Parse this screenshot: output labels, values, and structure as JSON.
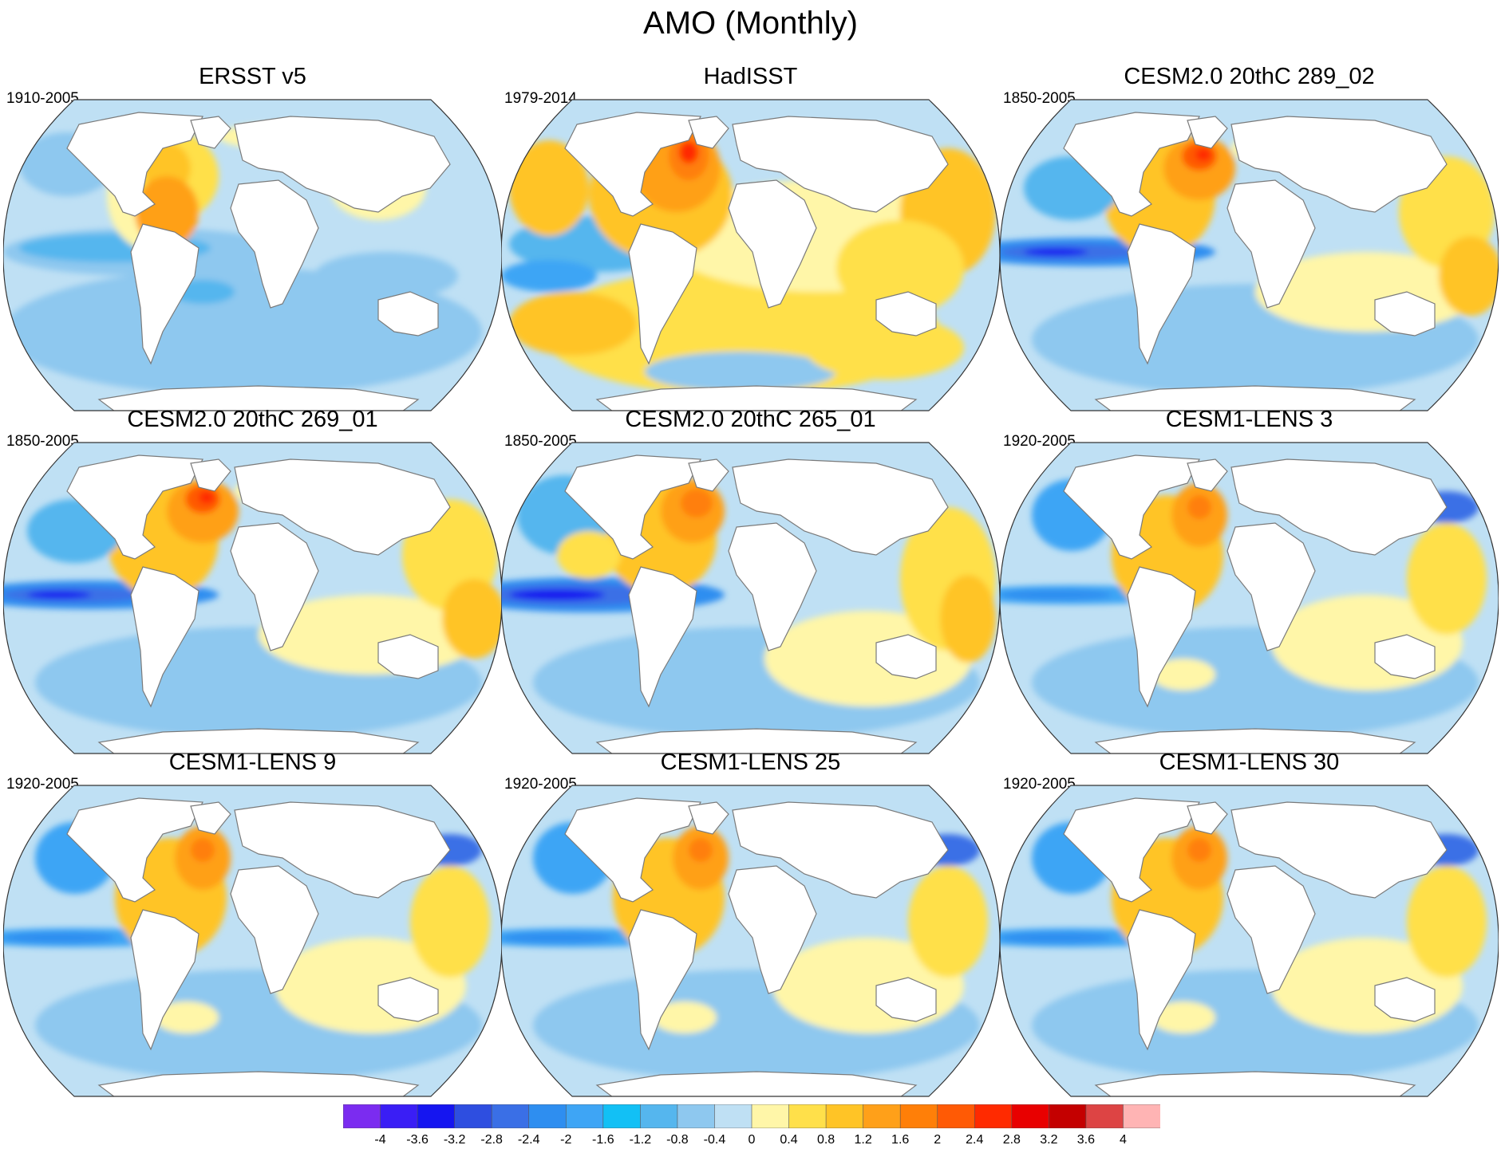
{
  "figure": {
    "title": "AMO (Monthly)",
    "projection": "Robinson (world)",
    "colors": {
      "land": "#ffffff",
      "coastline": "#7a7a7a",
      "border": "#333333"
    }
  },
  "panels": [
    {
      "title": "ERSST v5",
      "period": "1910-2005",
      "variant": "ersst"
    },
    {
      "title": "HadISST",
      "period": "1979-2014",
      "variant": "hadisst"
    },
    {
      "title": "CESM2.0 20thC 289_02",
      "period": "1850-2005",
      "variant": "cesm2"
    },
    {
      "title": "CESM2.0 20thC 269_01",
      "period": "1850-2005",
      "variant": "cesm2"
    },
    {
      "title": "CESM2.0 20thC 265_01",
      "period": "1850-2005",
      "variant": "cesm2strong"
    },
    {
      "title": "CESM1-LENS 3",
      "period": "1920-2005",
      "variant": "lens"
    },
    {
      "title": "CESM1-LENS 9",
      "period": "1920-2005",
      "variant": "lens"
    },
    {
      "title": "CESM1-LENS 25",
      "period": "1920-2005",
      "variant": "lens"
    },
    {
      "title": "CESM1-LENS 30",
      "period": "1920-2005",
      "variant": "lens"
    }
  ],
  "colorbar": {
    "ticks": [
      "-4",
      "-3.6",
      "-3.2",
      "-2.8",
      "-2.4",
      "-2",
      "-1.6",
      "-1.2",
      "-0.8",
      "-0.4",
      "0",
      "0.4",
      "0.8",
      "1.2",
      "1.6",
      "2",
      "2.4",
      "2.8",
      "3.2",
      "3.6",
      "4"
    ],
    "colors": [
      "#7b2cf0",
      "#3a1ef5",
      "#1515f0",
      "#2e4ee0",
      "#3a6fe6",
      "#2e8ef0",
      "#3ea5f5",
      "#12c0f5",
      "#55b6ee",
      "#8ec8ef",
      "#bfe0f4",
      "#fff6a8",
      "#ffe04a",
      "#ffc426",
      "#ffa019",
      "#ff7f08",
      "#ff5a05",
      "#ff2a00",
      "#e80000",
      "#c40000",
      "#dd4444",
      "#ffb4b4"
    ]
  },
  "chart_data": {
    "type": "heatmap",
    "title": "AMO (Monthly)",
    "description_note": "Nine global maps of AMO regression patterns; color scale from -4 to 4",
    "zlim": [
      -4,
      4
    ],
    "levels": [
      -4,
      -3.6,
      -3.2,
      -2.8,
      -2.4,
      -2,
      -1.6,
      -1.2,
      -0.8,
      -0.4,
      0,
      0.4,
      0.8,
      1.2,
      1.6,
      2,
      2.4,
      2.8,
      3.2,
      3.6,
      4
    ],
    "panels": [
      {
        "title": "ERSST v5",
        "period": "1910-2005",
        "north_atlantic_max": 1.6
      },
      {
        "title": "HadISST",
        "period": "1979-2014",
        "north_atlantic_max": 3.2
      },
      {
        "title": "CESM2.0 20thC 289_02",
        "period": "1850-2005",
        "north_atlantic_max": 2.8
      },
      {
        "title": "CESM2.0 20thC 269_01",
        "period": "1850-2005",
        "north_atlantic_max": 2.4
      },
      {
        "title": "CESM2.0 20thC 265_01",
        "period": "1850-2005",
        "north_atlantic_max": 2.0
      },
      {
        "title": "CESM1-LENS 3",
        "period": "1920-2005",
        "north_atlantic_max": 1.6
      },
      {
        "title": "CESM1-LENS 9",
        "period": "1920-2005",
        "north_atlantic_max": 1.6
      },
      {
        "title": "CESM1-LENS 25",
        "period": "1920-2005",
        "north_atlantic_max": 2.0
      },
      {
        "title": "CESM1-LENS 30",
        "period": "1920-2005",
        "north_atlantic_max": 2.0
      }
    ]
  }
}
